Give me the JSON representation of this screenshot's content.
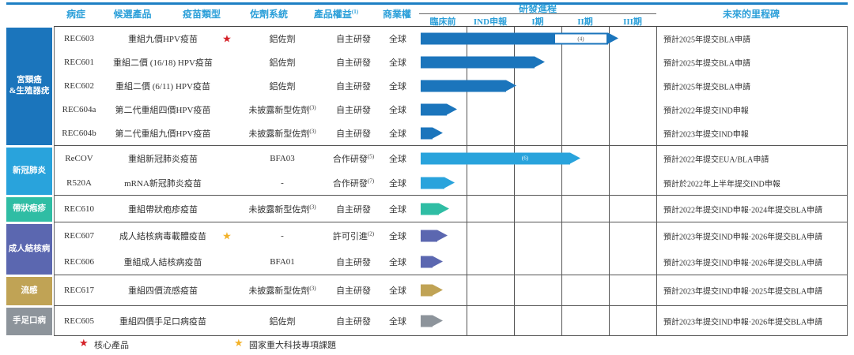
{
  "header": {
    "disease": "病症",
    "candidate": "候選產品",
    "vaccine_type": "疫苗類型",
    "adjuvant": "佐劑系統",
    "product_rights": "產品權益",
    "product_rights_sup": "(1)",
    "commercial_rights": "商業權",
    "progress": "研發進程",
    "milestone": "未來的里程碑"
  },
  "legend": [
    {
      "icon": "star",
      "color": "#d42027",
      "label": "核心產品"
    },
    {
      "icon": "star",
      "color": "#f3b229",
      "label": "國家重大科技專項課題"
    }
  ],
  "chart_data": {
    "type": "table",
    "phase_axis": [
      "臨床前",
      "IND申報",
      "I期",
      "II期",
      "III期"
    ],
    "star_colors": {
      "core": "#d42027",
      "national": "#f3b229"
    },
    "groups": [
      {
        "disease": "宮頸癌\n&生殖器疣",
        "color": "#1b75bc",
        "rows": [
          {
            "candidate": "REC603",
            "vaccine_type": "重組九價HPV疫苗",
            "star": "core",
            "adjuvant": "鋁佐劑",
            "adjuvant_sup": "",
            "rights": "自主研發",
            "rights_sup": "",
            "commercial": "全球",
            "progress": {
              "solid": 2.8,
              "hollow_to": 3.95,
              "hollow_note": "(4)"
            },
            "milestone": "預計2025年提交BLA申請"
          },
          {
            "candidate": "REC601",
            "vaccine_type": "重組二價 (16/18) HPV疫苗",
            "star": "",
            "adjuvant": "鋁佐劑",
            "adjuvant_sup": "",
            "rights": "自主研發",
            "rights_sup": "",
            "commercial": "全球",
            "progress": {
              "solid": 2.4
            },
            "milestone": "預計2025年提交BLA申請"
          },
          {
            "candidate": "REC602",
            "vaccine_type": "重組二價 (6/11) HPV疫苗",
            "star": "",
            "adjuvant": "鋁佐劑",
            "adjuvant_sup": "",
            "rights": "自主研發",
            "rights_sup": "",
            "commercial": "全球",
            "progress": {
              "solid": 1.8
            },
            "milestone": "預計2025年提交BLA申請"
          },
          {
            "candidate": "REC604a",
            "vaccine_type": "第二代重組四價HPV疫苗",
            "star": "",
            "adjuvant": "未披露新型佐劑",
            "adjuvant_sup": "(3)",
            "rights": "自主研發",
            "rights_sup": "",
            "commercial": "全球",
            "progress": {
              "solid": 0.55
            },
            "milestone": "預計2022年提交IND申報"
          },
          {
            "candidate": "REC604b",
            "vaccine_type": "第二代重組九價HPV疫苗",
            "star": "",
            "adjuvant": "未披露新型佐劑",
            "adjuvant_sup": "(3)",
            "rights": "自主研發",
            "rights_sup": "",
            "commercial": "全球",
            "progress": {
              "solid": 0.25
            },
            "milestone": "預計2023年提交IND申報"
          }
        ]
      },
      {
        "disease": "新冠肺炎",
        "color": "#29a3dc",
        "rows": [
          {
            "candidate": "ReCOV",
            "vaccine_type": "重組新冠肺炎疫苗",
            "star": "",
            "adjuvant": "BFA03",
            "adjuvant_sup": "",
            "rights": "合作研發",
            "rights_sup": "(5)",
            "commercial": "全球",
            "progress": {
              "solid": 3.15,
              "note": "(6)",
              "note_at": 2.2
            },
            "milestone": "預計2022年提交EUA/BLA申請"
          },
          {
            "candidate": "R520A",
            "vaccine_type": "mRNA新冠肺炎疫苗",
            "star": "",
            "adjuvant": "-",
            "adjuvant_sup": "",
            "rights": "合作研發",
            "rights_sup": "(7)",
            "commercial": "全球",
            "progress": {
              "solid": 0.5
            },
            "milestone": "預計於2022年上半年提交IND申報"
          }
        ]
      },
      {
        "disease": "帶狀疱疹",
        "color": "#2fbda4",
        "rows": [
          {
            "candidate": "REC610",
            "vaccine_type": "重組帶狀疱疹疫苗",
            "star": "",
            "adjuvant": "未披露新型佐劑",
            "adjuvant_sup": "(3)",
            "rights": "自主研發",
            "rights_sup": "",
            "commercial": "全球",
            "progress": {
              "solid": 0.38
            },
            "milestone": "預計2022年提交IND申報·2024年提交BLA申請"
          }
        ]
      },
      {
        "disease": "成人結核病",
        "color": "#5b67b0",
        "rows": [
          {
            "candidate": "REC607",
            "vaccine_type": "成人結核病毒載體疫苗",
            "star": "national",
            "adjuvant": "-",
            "adjuvant_sup": "",
            "rights": "許可引進",
            "rights_sup": "(2)",
            "commercial": "全球",
            "progress": {
              "solid": 0.35
            },
            "milestone": "預計2023年提交IND申報·2026年提交BLA申請"
          },
          {
            "candidate": "REC606",
            "vaccine_type": "重組成人結核病疫苗",
            "star": "",
            "adjuvant": "BFA01",
            "adjuvant_sup": "",
            "rights": "自主研發",
            "rights_sup": "",
            "commercial": "全球",
            "progress": {
              "solid": 0.25
            },
            "milestone": "預計2023年提交IND申報·2026年提交BLA申請"
          }
        ]
      },
      {
        "disease": "流感",
        "color": "#c0a355",
        "rows": [
          {
            "candidate": "REC617",
            "vaccine_type": "重組四價流感疫苗",
            "star": "",
            "adjuvant": "未披露新型佐劑",
            "adjuvant_sup": "(3)",
            "rights": "自主研發",
            "rights_sup": "",
            "commercial": "全球",
            "progress": {
              "solid": 0.25
            },
            "milestone": "預計2023年提交IND申報·2025年提交BLA申請"
          }
        ]
      },
      {
        "disease": "手足口病",
        "color": "#8d949b",
        "rows": [
          {
            "candidate": "REC605",
            "vaccine_type": "重組四價手足口病疫苗",
            "star": "",
            "adjuvant": "鋁佐劑",
            "adjuvant_sup": "",
            "rights": "自主研發",
            "rights_sup": "",
            "commercial": "全球",
            "progress": {
              "solid": 0.25
            },
            "milestone": "預計2023年提交IND申報·2026年提交BLA申請"
          }
        ]
      }
    ]
  }
}
